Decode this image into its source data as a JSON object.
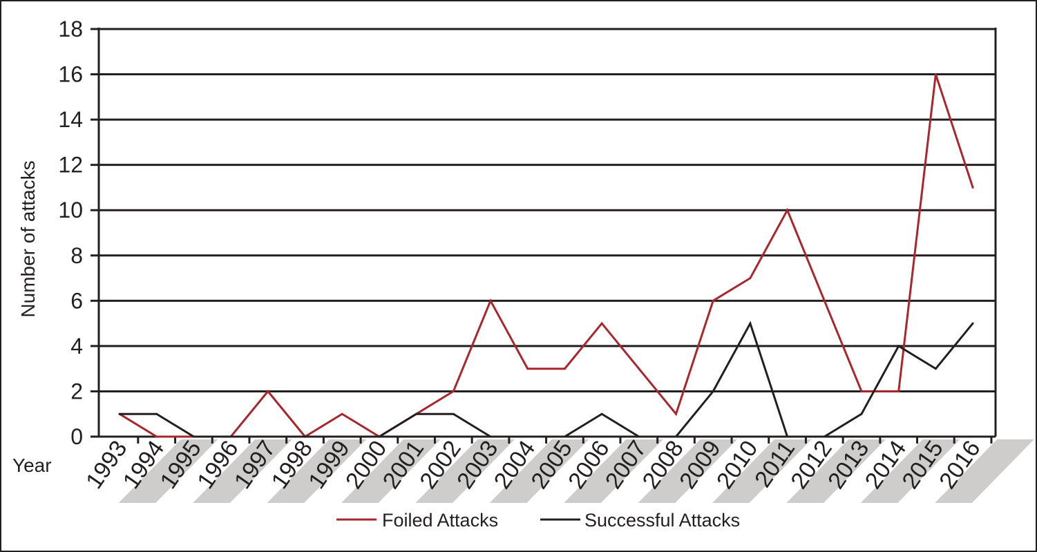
{
  "chart_data": {
    "type": "line",
    "title": "",
    "xlabel": "Year",
    "ylabel": "Number of attacks",
    "ylim": [
      0,
      18
    ],
    "yticks": [
      "0",
      "2",
      "4",
      "6",
      "8",
      "10",
      "12",
      "14",
      "16",
      "18"
    ],
    "categories": [
      "1993",
      "1994",
      "1995",
      "1996",
      "1997",
      "1998",
      "1999",
      "2000",
      "2001",
      "2002",
      "2003",
      "2004",
      "2005",
      "2006",
      "2007",
      "2008",
      "2009",
      "2010",
      "2011",
      "2012",
      "2013",
      "2014",
      "2015",
      "2016"
    ],
    "grid": true,
    "legend_position": "bottom",
    "series": [
      {
        "name": "Foiled Attacks",
        "color": "#a8262c",
        "values": [
          1,
          0,
          0,
          0,
          2,
          0,
          1,
          0,
          1,
          2,
          6,
          3,
          3,
          5,
          3,
          1,
          6,
          7,
          10,
          6,
          2,
          2,
          16,
          11
        ]
      },
      {
        "name": "Successful Attacks",
        "color": "#231f20",
        "values": [
          1,
          1,
          0,
          0,
          0,
          0,
          0,
          0,
          1,
          1,
          0,
          0,
          0,
          1,
          0,
          0,
          2,
          5,
          0,
          0,
          1,
          4,
          3,
          5
        ]
      }
    ]
  }
}
